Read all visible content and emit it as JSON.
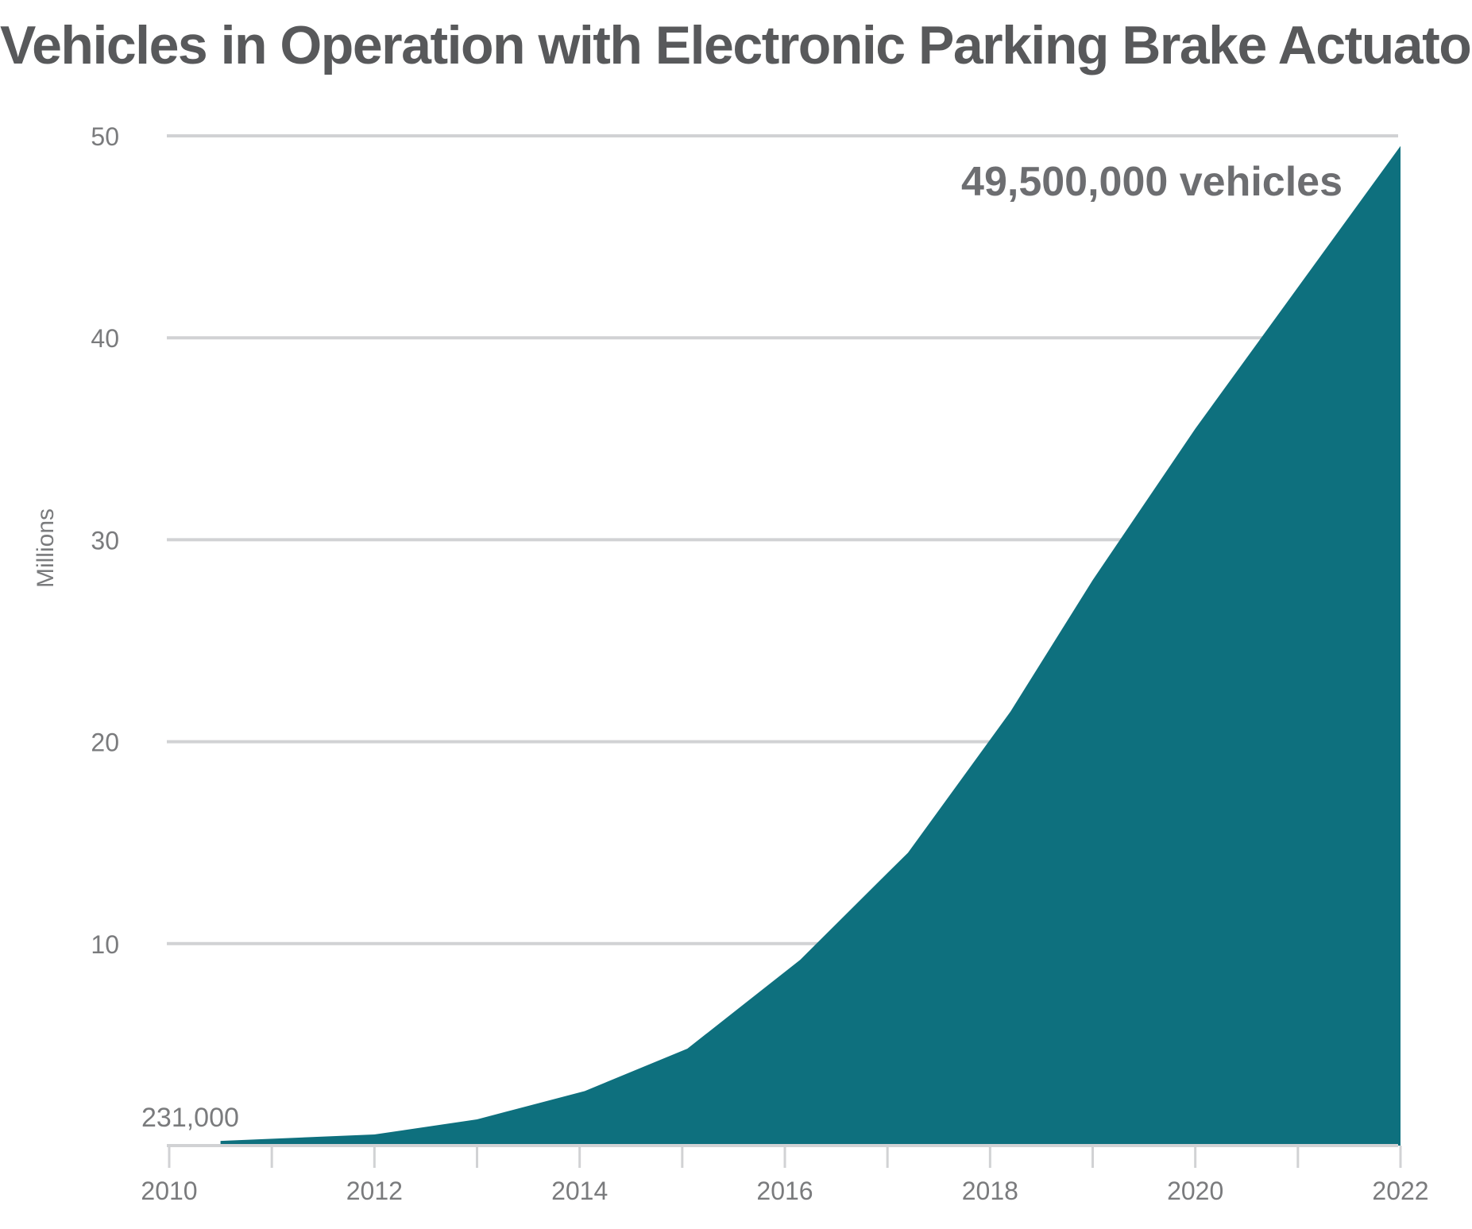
{
  "chart_data": {
    "type": "area",
    "title": "Vehicles in Operation with Electronic Parking Brake Actuators",
    "ylabel": "Millions",
    "xlabel": "",
    "x": [
      2010.5,
      2012,
      2013,
      2014.05,
      2015.05,
      2016.15,
      2017,
      2017.2,
      2018.2,
      2019,
      2020,
      2021,
      2022
    ],
    "values": [
      0.231,
      0.55,
      1.3,
      2.7,
      4.8,
      9.2,
      13.5,
      14.5,
      21.5,
      28.0,
      35.5,
      42.5,
      49.5
    ],
    "x_ticks": [
      "2010",
      "2012",
      "2014",
      "2016",
      "2018",
      "2020",
      "2022"
    ],
    "y_ticks": [
      "10",
      "20",
      "30",
      "40",
      "50"
    ],
    "xlim": [
      2010,
      2022
    ],
    "ylim": [
      0,
      50
    ],
    "grid": true,
    "color": "#0e707e",
    "annotations": {
      "start": "231,000",
      "end": "49,500,000 vehicles"
    }
  }
}
